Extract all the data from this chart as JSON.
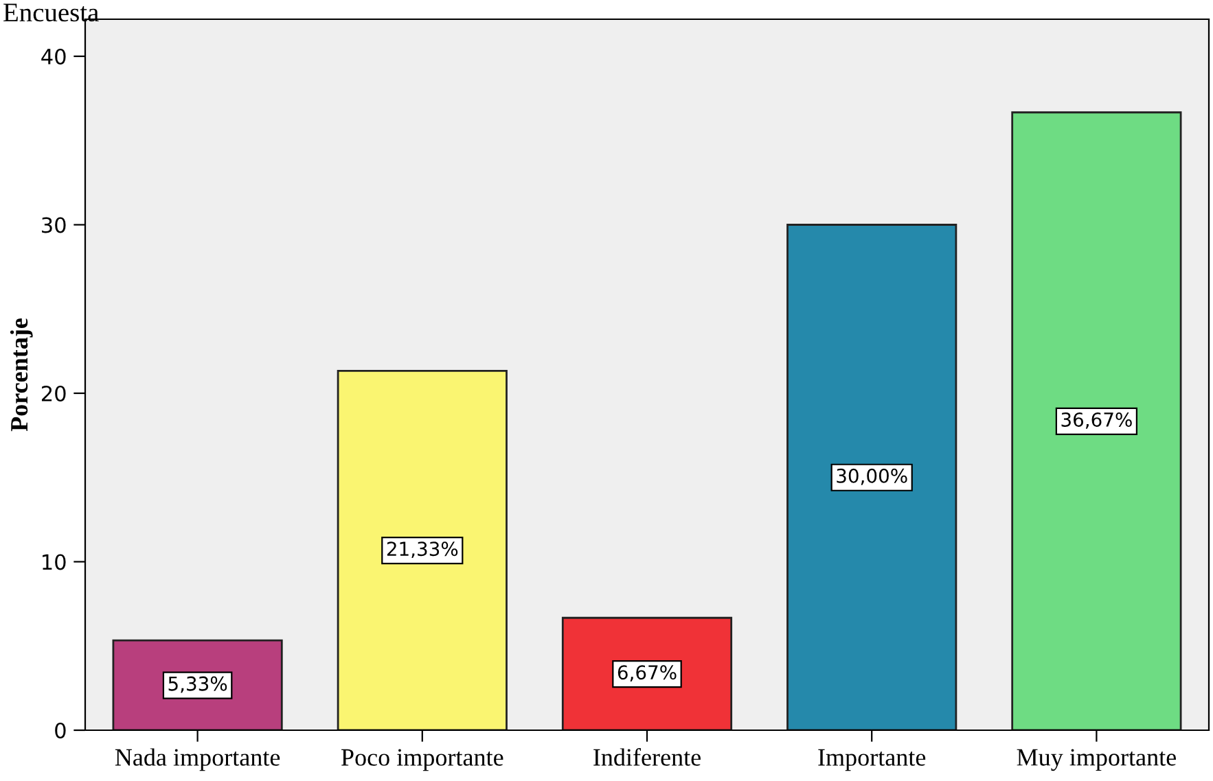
{
  "chart_data": {
    "type": "bar",
    "title": "Encuesta",
    "ylabel": "Porcentaje",
    "categories": [
      "Nada importante",
      "Poco importante",
      "Indiferente",
      "Importante",
      "Muy importante"
    ],
    "values": [
      5.33,
      21.33,
      6.67,
      30.0,
      36.67
    ],
    "colors": [
      "#b83f7d",
      "#faf571",
      "#f03237",
      "#2589ab",
      "#6edc83"
    ],
    "value_labels": [
      "5,33%",
      "21,33%",
      "6,67%",
      "30,00%",
      "36,67%"
    ],
    "ylim": [
      0,
      42.2
    ],
    "yticks": [
      0,
      10,
      20,
      30,
      40
    ],
    "grid": false
  }
}
